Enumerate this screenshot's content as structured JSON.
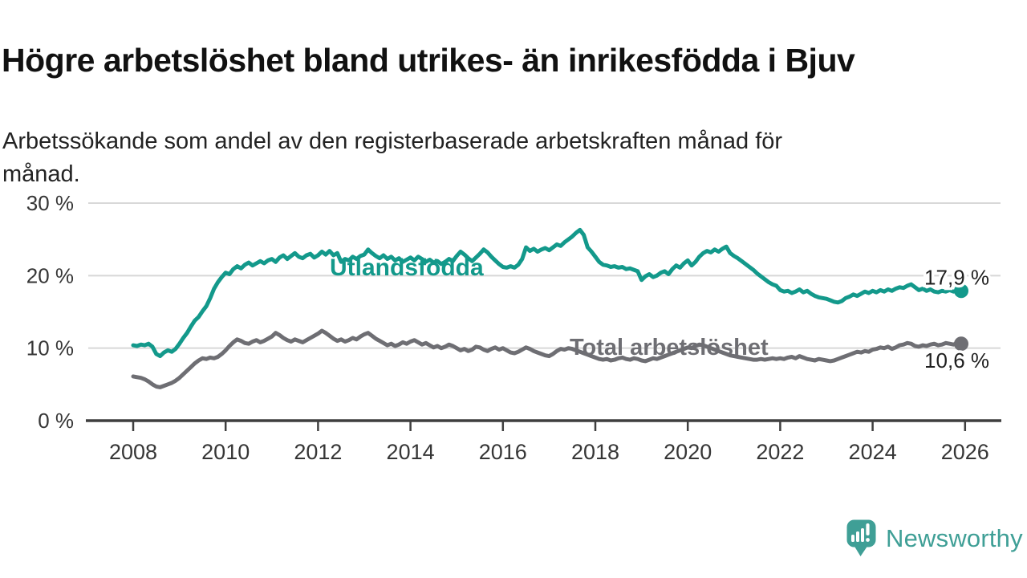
{
  "header": {
    "title": "Högre arbetslöshet bland utrikes- än inrikesfödda i Bjuv",
    "subtitle_lines": [
      "Arbetssökande som andel av den registerbaserade arbetskraften månad för",
      "månad."
    ]
  },
  "footer": {
    "brand": "Newsworthy",
    "brand_color": "#3F9F96",
    "logo_icon": "speech-bubble-bar-chart-icon"
  },
  "chart_data": {
    "type": "line",
    "title": "Högre arbetslöshet bland utrikes- än inrikesfödda i Bjuv",
    "subtitle": "Arbetssökande som andel av den registerbaserade arbetskraften månad för månad.",
    "x_frequency": "monthly",
    "start_year": 2008,
    "start_month": 1,
    "end_year": 2025,
    "end_month": 12,
    "xlim": [
      2007.0,
      2026.8
    ],
    "ylim": [
      0,
      30
    ],
    "grid": "horizontal",
    "legend_position": "inline-labels",
    "x_ticks": [
      2008,
      2010,
      2012,
      2014,
      2016,
      2018,
      2020,
      2022,
      2024,
      2026
    ],
    "y_ticks": [
      {
        "value": 0,
        "label": "0 %"
      },
      {
        "value": 10,
        "label": "10 %"
      },
      {
        "value": 20,
        "label": "20 %"
      },
      {
        "value": 30,
        "label": "30 %"
      }
    ],
    "colors": {
      "gridline": "#D8D8D8",
      "axis": "#3F3F3F",
      "tick_text": "#363636",
      "end_label_text": "#1F1F1F"
    },
    "series": [
      {
        "name": "Utlandsfödda",
        "color": "#13998B",
        "end_label": "17,9 %",
        "end_value": 17.9,
        "values": [
          10.4,
          10.3,
          10.5,
          10.4,
          10.6,
          10.2,
          9.2,
          8.9,
          9.4,
          9.7,
          9.5,
          9.9,
          10.6,
          11.4,
          12.1,
          13.0,
          13.8,
          14.3,
          15.1,
          15.8,
          16.9,
          18.2,
          19.1,
          19.8,
          20.4,
          20.2,
          20.9,
          21.3,
          21.0,
          21.5,
          21.8,
          21.4,
          21.7,
          22.0,
          21.7,
          22.1,
          22.3,
          21.9,
          22.5,
          22.8,
          22.3,
          22.7,
          23.1,
          22.6,
          22.4,
          22.8,
          23.0,
          22.5,
          22.8,
          23.3,
          22.9,
          23.4,
          22.8,
          23.1,
          21.9,
          22.3,
          22.1,
          22.6,
          22.3,
          22.7,
          22.9,
          23.6,
          23.1,
          22.7,
          22.4,
          22.8,
          22.3,
          22.6,
          22.1,
          22.4,
          21.9,
          22.2,
          22.5,
          22.1,
          22.6,
          22.3,
          21.9,
          22.2,
          21.8,
          22.0,
          21.6,
          21.9,
          22.3,
          22.0,
          22.7,
          23.3,
          22.9,
          22.4,
          22.0,
          22.5,
          23.0,
          23.6,
          23.2,
          22.6,
          22.1,
          21.6,
          21.2,
          21.1,
          21.3,
          21.1,
          21.5,
          22.3,
          23.9,
          23.4,
          23.7,
          23.3,
          23.6,
          23.8,
          23.5,
          23.9,
          24.3,
          24.1,
          24.6,
          25.0,
          25.4,
          25.9,
          26.3,
          25.6,
          23.9,
          23.3,
          22.6,
          21.9,
          21.5,
          21.4,
          21.2,
          21.3,
          21.1,
          21.2,
          20.9,
          21.0,
          20.8,
          20.6,
          19.4,
          19.9,
          20.2,
          19.8,
          20.0,
          20.4,
          20.6,
          20.2,
          20.9,
          21.4,
          21.1,
          21.7,
          22.1,
          21.4,
          21.9,
          22.6,
          23.1,
          23.4,
          23.2,
          23.6,
          23.3,
          23.7,
          24.0,
          23.1,
          22.7,
          22.4,
          22.0,
          21.6,
          21.2,
          20.8,
          20.3,
          19.9,
          19.5,
          19.1,
          18.8,
          18.6,
          18.0,
          17.8,
          17.9,
          17.6,
          17.8,
          18.1,
          17.7,
          17.9,
          17.5,
          17.2,
          17.0,
          16.9,
          16.8,
          16.6,
          16.4,
          16.3,
          16.5,
          16.9,
          17.1,
          17.4,
          17.2,
          17.5,
          17.8,
          17.6,
          17.9,
          17.7,
          18.0,
          17.8,
          18.1,
          17.9,
          18.2,
          18.4,
          18.3,
          18.6,
          18.8,
          18.4,
          18.0,
          18.2,
          17.9,
          18.1,
          17.8,
          17.7,
          17.9,
          17.8,
          18.0,
          17.8,
          17.9,
          17.9
        ]
      },
      {
        "name": "Total arbetslöshet",
        "color": "#6E6E73",
        "end_label": "10,6 %",
        "end_value": 10.6,
        "values": [
          6.1,
          6.0,
          5.9,
          5.7,
          5.4,
          5.0,
          4.7,
          4.6,
          4.8,
          5.0,
          5.2,
          5.5,
          5.9,
          6.4,
          6.9,
          7.4,
          7.9,
          8.3,
          8.6,
          8.5,
          8.7,
          8.6,
          8.8,
          9.2,
          9.7,
          10.3,
          10.8,
          11.2,
          11.0,
          10.7,
          10.6,
          10.9,
          11.1,
          10.8,
          11.0,
          11.3,
          11.6,
          12.1,
          11.8,
          11.4,
          11.1,
          10.9,
          11.2,
          11.0,
          10.8,
          11.1,
          11.4,
          11.7,
          12.0,
          12.4,
          12.1,
          11.7,
          11.3,
          11.0,
          11.2,
          10.9,
          11.1,
          11.4,
          11.2,
          11.6,
          11.9,
          12.1,
          11.7,
          11.3,
          11.0,
          10.7,
          10.4,
          10.6,
          10.3,
          10.5,
          10.8,
          10.6,
          10.9,
          11.1,
          10.8,
          10.5,
          10.7,
          10.4,
          10.1,
          10.3,
          10.0,
          10.2,
          10.5,
          10.3,
          10.0,
          9.7,
          9.9,
          9.6,
          9.8,
          10.2,
          10.1,
          9.8,
          9.6,
          9.9,
          10.1,
          9.8,
          10.0,
          9.7,
          9.4,
          9.3,
          9.5,
          9.8,
          10.1,
          9.9,
          9.6,
          9.4,
          9.2,
          9.0,
          8.9,
          9.2,
          9.6,
          9.9,
          9.8,
          10.0,
          9.9,
          9.7,
          9.5,
          9.3,
          9.1,
          8.9,
          8.7,
          8.5,
          8.4,
          8.5,
          8.3,
          8.4,
          8.6,
          8.7,
          8.5,
          8.4,
          8.6,
          8.5,
          8.3,
          8.2,
          8.4,
          8.6,
          8.5,
          8.7,
          8.9,
          9.1,
          9.3,
          9.5,
          9.7,
          9.9,
          10.1,
          10.0,
          10.3,
          10.5,
          10.4,
          10.2,
          10.0,
          9.8,
          9.6,
          9.4,
          9.2,
          9.0,
          8.9,
          8.8,
          8.7,
          8.6,
          8.5,
          8.4,
          8.4,
          8.5,
          8.4,
          8.5,
          8.6,
          8.5,
          8.6,
          8.5,
          8.7,
          8.8,
          8.6,
          8.9,
          8.7,
          8.5,
          8.4,
          8.3,
          8.5,
          8.4,
          8.3,
          8.2,
          8.3,
          8.5,
          8.7,
          8.9,
          9.1,
          9.3,
          9.5,
          9.4,
          9.6,
          9.5,
          9.8,
          9.9,
          10.1,
          10.0,
          10.2,
          9.9,
          10.1,
          10.4,
          10.5,
          10.7,
          10.6,
          10.3,
          10.2,
          10.4,
          10.3,
          10.5,
          10.6,
          10.4,
          10.5,
          10.7,
          10.6,
          10.5,
          10.7,
          10.6
        ]
      }
    ]
  }
}
